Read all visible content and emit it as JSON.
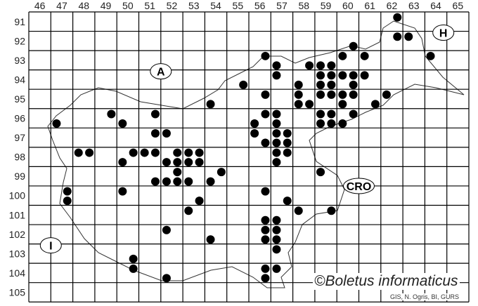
{
  "map": {
    "columns": [
      "46",
      "47",
      "48",
      "49",
      "50",
      "51",
      "52",
      "53",
      "54",
      "55",
      "56",
      "57",
      "58",
      "59",
      "60",
      "61",
      "62",
      "63",
      "64",
      "65"
    ],
    "rows": [
      "91",
      "92",
      "93",
      "94",
      "95",
      "96",
      "97",
      "98",
      "99",
      "100",
      "101",
      "102",
      "103",
      "104",
      "105"
    ],
    "country_labels": [
      {
        "text": "A",
        "col": 52,
        "row": 94
      },
      {
        "text": "H",
        "col": 65,
        "row": 92
      },
      {
        "text": "CRO",
        "col": 61,
        "row": 100
      },
      {
        "text": "I",
        "col": 47,
        "row": 103
      }
    ],
    "dot_color": "#000000",
    "quadrant_legend": "dots given as [column, row, quadrant]; quadrant 1=NW 2=NE 3=SW 4=SE",
    "dots": [
      [
        62,
        91,
        2
      ],
      [
        62,
        92,
        2
      ],
      [
        63,
        92,
        1
      ],
      [
        64,
        93,
        1
      ],
      [
        60,
        92,
        4
      ],
      [
        60,
        93,
        1
      ],
      [
        61,
        93,
        1
      ],
      [
        56,
        93,
        2
      ],
      [
        57,
        93,
        3
      ],
      [
        57,
        94,
        1
      ],
      [
        58,
        93,
        4
      ],
      [
        59,
        93,
        3
      ],
      [
        59,
        93,
        4
      ],
      [
        59,
        94,
        1
      ],
      [
        59,
        94,
        2
      ],
      [
        60,
        94,
        1
      ],
      [
        60,
        94,
        2
      ],
      [
        61,
        94,
        1
      ],
      [
        55,
        94,
        4
      ],
      [
        58,
        94,
        3
      ],
      [
        59,
        94,
        3
      ],
      [
        59,
        94,
        4
      ],
      [
        60,
        94,
        4
      ],
      [
        56,
        95,
        2
      ],
      [
        58,
        95,
        1
      ],
      [
        59,
        95,
        1
      ],
      [
        59,
        95,
        2
      ],
      [
        60,
        95,
        1
      ],
      [
        60,
        95,
        2
      ],
      [
        62,
        95,
        1
      ],
      [
        58,
        95,
        3
      ],
      [
        58,
        95,
        4
      ],
      [
        60,
        95,
        3
      ],
      [
        61,
        95,
        4
      ],
      [
        56,
        96,
        2
      ],
      [
        57,
        96,
        1
      ],
      [
        59,
        96,
        1
      ],
      [
        59,
        96,
        2
      ],
      [
        60,
        96,
        2
      ],
      [
        56,
        96,
        3
      ],
      [
        57,
        96,
        3
      ],
      [
        59,
        96,
        3
      ],
      [
        59,
        96,
        4
      ],
      [
        60,
        96,
        3
      ],
      [
        56,
        97,
        1
      ],
      [
        57,
        97,
        1
      ],
      [
        57,
        97,
        2
      ],
      [
        56,
        97,
        4
      ],
      [
        57,
        97,
        3
      ],
      [
        57,
        97,
        4
      ],
      [
        54,
        95,
        3
      ],
      [
        47,
        96,
        3
      ],
      [
        49,
        96,
        2
      ],
      [
        50,
        96,
        3
      ],
      [
        51,
        96,
        2
      ],
      [
        51,
        97,
        2
      ],
      [
        52,
        97,
        1
      ],
      [
        48,
        98,
        1
      ],
      [
        48,
        98,
        2
      ],
      [
        50,
        98,
        2
      ],
      [
        51,
        98,
        1
      ],
      [
        51,
        98,
        2
      ],
      [
        52,
        98,
        2
      ],
      [
        53,
        98,
        1
      ],
      [
        53,
        98,
        2
      ],
      [
        50,
        98,
        3
      ],
      [
        52,
        98,
        3
      ],
      [
        52,
        98,
        4
      ],
      [
        53,
        98,
        3
      ],
      [
        53,
        98,
        4
      ],
      [
        52,
        99,
        2
      ],
      [
        54,
        99,
        2
      ],
      [
        51,
        99,
        4
      ],
      [
        52,
        99,
        3
      ],
      [
        52,
        99,
        4
      ],
      [
        53,
        99,
        3
      ],
      [
        54,
        99,
        3
      ],
      [
        47,
        100,
        2
      ],
      [
        50,
        100,
        1
      ],
      [
        47,
        100,
        4
      ],
      [
        53,
        100,
        4
      ],
      [
        53,
        101,
        1
      ],
      [
        52,
        102,
        1
      ],
      [
        54,
        102,
        3
      ],
      [
        50,
        103,
        4
      ],
      [
        50,
        104,
        2
      ],
      [
        52,
        104,
        3
      ],
      [
        57,
        98,
        1
      ],
      [
        57,
        98,
        2
      ],
      [
        57,
        98,
        3
      ],
      [
        59,
        99,
        1
      ],
      [
        56,
        100,
        2
      ],
      [
        57,
        100,
        4
      ],
      [
        58,
        101,
        1
      ],
      [
        59,
        101,
        2
      ],
      [
        56,
        101,
        4
      ],
      [
        57,
        101,
        3
      ],
      [
        56,
        102,
        2
      ],
      [
        57,
        102,
        1
      ],
      [
        56,
        102,
        4
      ],
      [
        57,
        102,
        3
      ],
      [
        57,
        103,
        1
      ],
      [
        56,
        104,
        2
      ],
      [
        57,
        104,
        1
      ],
      [
        56,
        104,
        4
      ]
    ]
  },
  "copyright": "©Boletus informaticus",
  "credits": "GIS, N. Ogris, BI, GURS"
}
